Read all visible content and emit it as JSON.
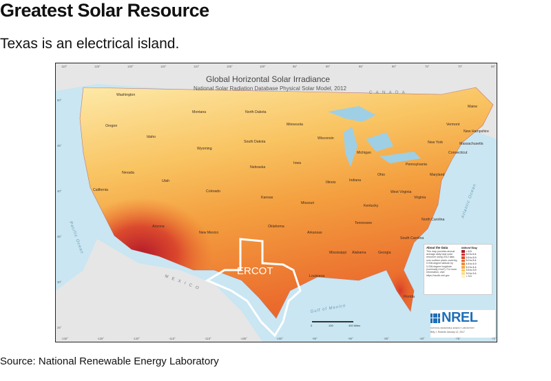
{
  "headline": "Greatest Solar Resource",
  "subhead": "Texas is an electrical island.",
  "source": "Source: National Renewable Energy Laboratory",
  "map": {
    "title": "Global Horizontal Solar Irradiance",
    "subtitle": "National Solar Radiation Database Physical Solar Model, 2012",
    "region_label": "ERCOT",
    "countries": {
      "canada": "C A N A D A",
      "mexico": "M E X I C O"
    },
    "waters": {
      "pacific": "Pacific Ocean",
      "atlantic": "Atlantic Ocean",
      "gulf": "Gulf of Mexico"
    },
    "states": [
      "Washington",
      "Oregon",
      "California",
      "Idaho",
      "Nevada",
      "Montana",
      "Wyoming",
      "Utah",
      "Arizona",
      "Colorado",
      "New Mexico",
      "North Dakota",
      "South Dakota",
      "Nebraska",
      "Kansas",
      "Oklahoma",
      "Minnesota",
      "Iowa",
      "Missouri",
      "Arkansas",
      "Louisiana",
      "Wisconsin",
      "Illinois",
      "Michigan",
      "Indiana",
      "Kentucky",
      "Tennessee",
      "Mississippi",
      "Alabama",
      "Georgia",
      "Florida",
      "Ohio",
      "West Virginia",
      "Virginia",
      "North Carolina",
      "South Carolina",
      "Pennsylvania",
      "New York",
      "Maine",
      "Vermont",
      "New Hampshire",
      "Massachusetts",
      "Connecticut",
      "Maryland"
    ],
    "top_coords": [
      "110°",
      "125°",
      "120°",
      "115°",
      "110°",
      "105°",
      "100°",
      "95°",
      "90°",
      "85°",
      "80°",
      "75°",
      "70°",
      "65°"
    ],
    "bottom_coords": [
      "-130°",
      "-125°",
      "-120°",
      "-115°",
      "-110°",
      "-105°",
      "-100°",
      "-95°",
      "-90°",
      "-85°",
      "-80°",
      "-75°",
      "-70°"
    ],
    "left_coords": [
      "50°",
      "45°",
      "40°",
      "35°",
      "30°",
      "25°"
    ],
    "legend": {
      "heading": "About the Data",
      "description": "This map provides annual average daily total solar resource using 2012 data over surface pixels covering 0.038-degree latitude by 0.038-degree longitude (nominally 4 km²). For more information, visit: https://nsrdb.nrel.gov",
      "unit": "kWh/m²/Day",
      "bins": [
        {
          "label": "> 6.5",
          "color": "#b2182b"
        },
        {
          "label": "6.0 to 6.4",
          "color": "#c8322a"
        },
        {
          "label": "5.5 to 5.9",
          "color": "#dc4a2a"
        },
        {
          "label": "5.0 to 5.4",
          "color": "#ea6a2c"
        },
        {
          "label": "4.5 to 4.9",
          "color": "#f28b35"
        },
        {
          "label": "4.0 to 4.4",
          "color": "#f6a845"
        },
        {
          "label": "3.5 to 3.9",
          "color": "#f9c462"
        },
        {
          "label": "3.0 to 3.4",
          "color": "#fbdc8a"
        },
        {
          "label": "< 3.0",
          "color": "#fdf0bd"
        }
      ]
    },
    "logo": "NREL",
    "logo_sub": "NATIONAL RENEWABLE ENERGY LABORATORY",
    "credit": "Billy J. Roberts   January 12, 2017",
    "scale": {
      "labels": [
        "0",
        "100",
        "400 Miles"
      ]
    }
  }
}
